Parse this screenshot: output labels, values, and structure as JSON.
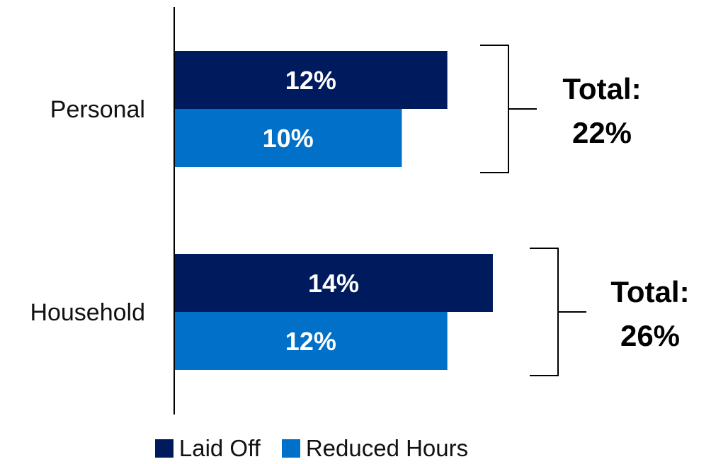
{
  "chart_data": {
    "type": "bar",
    "orientation": "horizontal",
    "categories": [
      "Personal",
      "Household"
    ],
    "series": [
      {
        "name": "Laid Off",
        "values": [
          12,
          14
        ],
        "labels": [
          "12%",
          "14%"
        ],
        "color": "#001a5e"
      },
      {
        "name": "Reduced Hours",
        "values": [
          10,
          12
        ],
        "labels": [
          "10%",
          "12%"
        ],
        "color": "#0070c8"
      }
    ],
    "totals": [
      {
        "line1": "Total:",
        "line2": "22%"
      },
      {
        "line1": "Total:",
        "line2": "26%"
      }
    ],
    "xlim": [
      0,
      16
    ],
    "grid": false,
    "legend_position": "bottom"
  }
}
